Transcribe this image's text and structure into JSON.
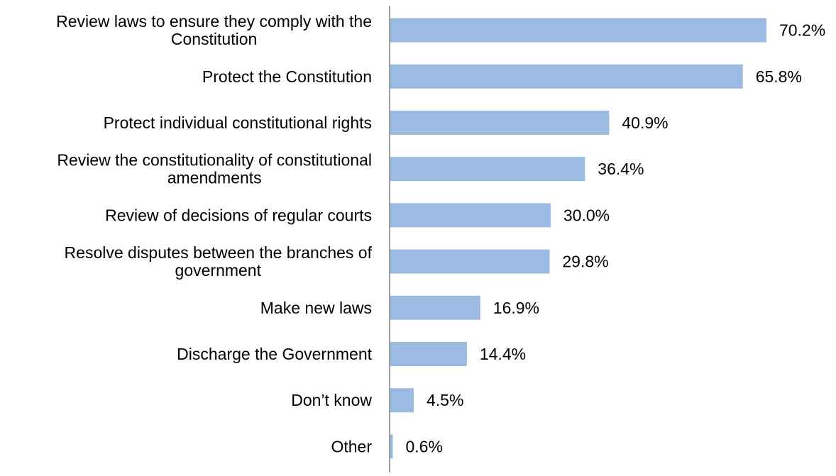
{
  "chart_data": {
    "type": "bar",
    "orientation": "horizontal",
    "title": "",
    "xlabel": "",
    "ylabel": "",
    "xlim": [
      0,
      72
    ],
    "grid": false,
    "legend": "none",
    "bar_color": "#9bbbe3",
    "axis_color": "#7f7f7f",
    "categories": [
      "Review laws to ensure they comply with the Constitution",
      "Protect the Constitution",
      "Protect individual constitutional rights",
      "Review the constitutionality of constitutional amendments",
      "Review of decisions of regular courts",
      "Resolve disputes between the branches of government",
      "Make new laws",
      "Discharge the Government",
      "Don’t know",
      "Other"
    ],
    "category_label_lines": [
      [
        "Review laws to ensure they comply with the",
        "Constitution"
      ],
      [
        "Protect the Constitution"
      ],
      [
        "Protect individual constitutional rights"
      ],
      [
        "Review the constitutionality of constitutional",
        "amendments"
      ],
      [
        "Review of decisions of regular courts"
      ],
      [
        "Resolve disputes between the branches of",
        "government"
      ],
      [
        "Make new laws"
      ],
      [
        "Discharge the Government"
      ],
      [
        "Don’t know"
      ],
      [
        "Other"
      ]
    ],
    "values": [
      70.2,
      65.8,
      40.9,
      36.4,
      30.0,
      29.8,
      16.9,
      14.4,
      4.5,
      0.6
    ],
    "value_labels": [
      "70.2%",
      "65.8%",
      "40.9%",
      "36.4%",
      "30.0%",
      "29.8%",
      "16.9%",
      "14.4%",
      "4.5%",
      "0.6%"
    ]
  }
}
